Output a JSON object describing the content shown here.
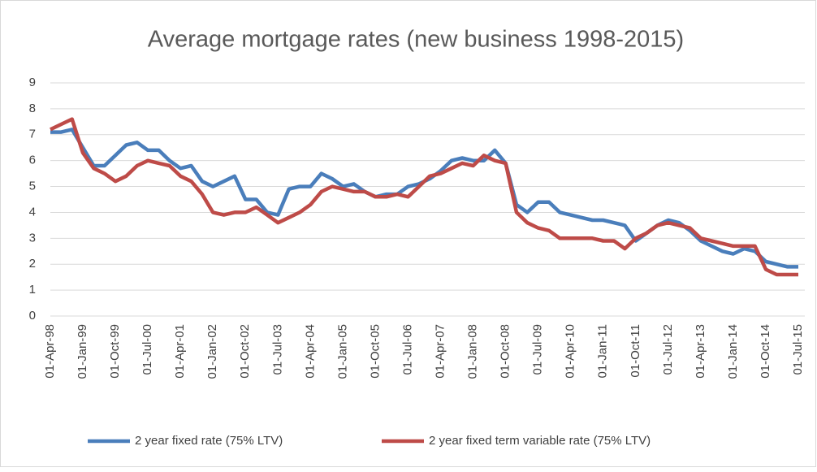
{
  "chart_data": {
    "type": "line",
    "title": "Average mortgage rates (new business 1998-2015)",
    "categories": [
      "01-Apr-98",
      null,
      null,
      "01-Jan-99",
      null,
      null,
      "01-Oct-99",
      null,
      null,
      "01-Jul-00",
      null,
      null,
      "01-Apr-01",
      null,
      null,
      "01-Jan-02",
      null,
      null,
      "01-Oct-02",
      null,
      null,
      "01-Jul-03",
      null,
      null,
      "01-Apr-04",
      null,
      null,
      "01-Jan-05",
      null,
      null,
      "01-Oct-05",
      null,
      null,
      "01-Jul-06",
      null,
      null,
      "01-Apr-07",
      null,
      null,
      "01-Jan-08",
      null,
      null,
      "01-Oct-08",
      null,
      null,
      "01-Jul-09",
      null,
      null,
      "01-Apr-10",
      null,
      null,
      "01-Jan-11",
      null,
      null,
      "01-Oct-11",
      null,
      null,
      "01-Jul-12",
      null,
      null,
      "01-Apr-13",
      null,
      null,
      "01-Jan-14",
      null,
      null,
      "01-Oct-14",
      null,
      null,
      "01-Jul-15"
    ],
    "series": [
      {
        "name": "2 year fixed rate (75% LTV)",
        "color": "#4a7ebb",
        "values": [
          7.1,
          7.1,
          7.2,
          6.5,
          5.8,
          5.8,
          6.2,
          6.6,
          6.7,
          6.4,
          6.4,
          6.0,
          5.7,
          5.8,
          5.2,
          5.0,
          5.2,
          5.4,
          4.5,
          4.5,
          4.0,
          3.9,
          4.9,
          5.0,
          5.0,
          5.5,
          5.3,
          5.0,
          5.1,
          4.8,
          4.6,
          4.7,
          4.7,
          5.0,
          5.1,
          5.3,
          5.6,
          6.0,
          6.1,
          6.0,
          6.0,
          6.4,
          5.9,
          4.3,
          4.0,
          4.4,
          4.4,
          4.0,
          3.9,
          3.8,
          3.7,
          3.7,
          3.6,
          3.5,
          2.9,
          3.2,
          3.5,
          3.7,
          3.6,
          3.3,
          2.9,
          2.7,
          2.5,
          2.4,
          2.6,
          2.5,
          2.1,
          2.0,
          1.9,
          1.9
        ]
      },
      {
        "name": "2 year fixed term variable rate (75% LTV)",
        "color": "#be4b48",
        "values": [
          7.2,
          7.4,
          7.6,
          6.3,
          5.7,
          5.5,
          5.2,
          5.4,
          5.8,
          6.0,
          5.9,
          5.8,
          5.4,
          5.2,
          4.7,
          4.0,
          3.9,
          4.0,
          4.0,
          4.2,
          3.9,
          3.6,
          3.8,
          4.0,
          4.3,
          4.8,
          5.0,
          4.9,
          4.8,
          4.8,
          4.6,
          4.6,
          4.7,
          4.6,
          5.0,
          5.4,
          5.5,
          5.7,
          5.9,
          5.8,
          6.2,
          6.0,
          5.9,
          4.0,
          3.6,
          3.4,
          3.3,
          3.0,
          3.0,
          3.0,
          3.0,
          2.9,
          2.9,
          2.6,
          3.0,
          3.2,
          3.5,
          3.6,
          3.5,
          3.4,
          3.0,
          2.9,
          2.8,
          2.7,
          2.7,
          2.7,
          1.8,
          1.6,
          1.6,
          1.6
        ]
      }
    ],
    "ylim": [
      0,
      9
    ],
    "yticks": [
      0,
      1,
      2,
      3,
      4,
      5,
      6,
      7,
      8,
      9
    ],
    "grid": true,
    "legend": "bottom"
  }
}
